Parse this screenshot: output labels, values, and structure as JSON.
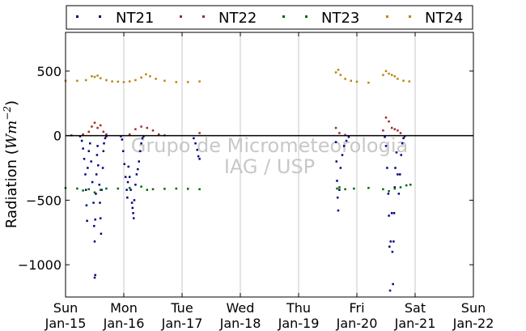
{
  "chart_data": {
    "type": "scatter",
    "title": "",
    "xlabel": "",
    "ylabel": "Radiation (Wm⁻²)",
    "ylabel_parts": {
      "prefix": "Radiation (",
      "unit_base": "Wm",
      "unit_exp": "−2",
      "suffix": ")"
    },
    "watermark": [
      "Grupo de Micrometeorologia",
      "IAG / USP"
    ],
    "ylim": [
      -1250,
      800
    ],
    "yticks": [
      -1000,
      -500,
      0,
      500
    ],
    "ytick_labels": [
      "−1000",
      "−500",
      "0",
      "500"
    ],
    "xlim": [
      0,
      7
    ],
    "xticks": [
      0,
      1,
      2,
      3,
      4,
      5,
      6,
      7
    ],
    "xtick_labels": [
      [
        "Sun",
        "Jan-15"
      ],
      [
        "Mon",
        "Jan-16"
      ],
      [
        "Tue",
        "Jan-17"
      ],
      [
        "Wed",
        "Jan-18"
      ],
      [
        "Thu",
        "Jan-19"
      ],
      [
        "Fri",
        "Jan-20"
      ],
      [
        "Sat",
        "Jan-21"
      ],
      [
        "Sun",
        "Jan-22"
      ]
    ],
    "grid": "vertical",
    "zero_line": true,
    "legend_position": "top",
    "series": [
      {
        "name": "NT21",
        "color": "#000080",
        "points": [
          [
            0.25,
            -5
          ],
          [
            0.28,
            -40
          ],
          [
            0.3,
            -100
          ],
          [
            0.32,
            -180
          ],
          [
            0.34,
            -300
          ],
          [
            0.35,
            -420
          ],
          [
            0.36,
            -540
          ],
          [
            0.37,
            -660
          ],
          [
            0.38,
            -250
          ],
          [
            0.4,
            -120
          ],
          [
            0.42,
            -60
          ],
          [
            0.44,
            -200
          ],
          [
            0.46,
            -360
          ],
          [
            0.48,
            -520
          ],
          [
            0.49,
            -700
          ],
          [
            0.5,
            -820
          ],
          [
            0.51,
            -650
          ],
          [
            0.52,
            -450
          ],
          [
            0.53,
            -300
          ],
          [
            0.54,
            -150
          ],
          [
            0.55,
            -80
          ],
          [
            0.56,
            -230
          ],
          [
            0.58,
            -380
          ],
          [
            0.59,
            -520
          ],
          [
            0.6,
            -640
          ],
          [
            0.61,
            -760
          ],
          [
            0.62,
            -420
          ],
          [
            0.64,
            -250
          ],
          [
            0.65,
            -120
          ],
          [
            0.66,
            -60
          ],
          [
            0.68,
            -20
          ],
          [
            0.7,
            -5
          ],
          [
            0.5,
            -1100
          ],
          [
            0.51,
            -1080
          ],
          [
            0.95,
            -5
          ],
          [
            0.97,
            -30
          ],
          [
            0.99,
            -120
          ],
          [
            1.01,
            -220
          ],
          [
            1.03,
            -320
          ],
          [
            1.05,
            -420
          ],
          [
            1.06,
            -480
          ],
          [
            1.07,
            -360
          ],
          [
            1.08,
            -240
          ],
          [
            1.1,
            -320
          ],
          [
            1.12,
            -420
          ],
          [
            1.14,
            -520
          ],
          [
            1.15,
            -560
          ],
          [
            1.16,
            -600
          ],
          [
            1.17,
            -640
          ],
          [
            1.18,
            -500
          ],
          [
            1.2,
            -380
          ],
          [
            1.22,
            -300
          ],
          [
            1.24,
            -260
          ],
          [
            1.26,
            -200
          ],
          [
            1.28,
            -120
          ],
          [
            1.3,
            -60
          ],
          [
            1.32,
            -20
          ],
          [
            1.34,
            -5
          ],
          [
            2.2,
            -20
          ],
          [
            2.23,
            -60
          ],
          [
            2.26,
            -110
          ],
          [
            2.28,
            -160
          ],
          [
            2.3,
            -180
          ],
          [
            4.64,
            -50
          ],
          [
            4.65,
            -200
          ],
          [
            4.66,
            -350
          ],
          [
            4.67,
            -480
          ],
          [
            4.68,
            -580
          ],
          [
            4.7,
            -420
          ],
          [
            4.72,
            -250
          ],
          [
            4.75,
            -150
          ],
          [
            4.78,
            -80
          ],
          [
            4.82,
            -40
          ],
          [
            4.86,
            -10
          ],
          [
            5.48,
            -10
          ],
          [
            5.5,
            -80
          ],
          [
            5.52,
            -250
          ],
          [
            5.54,
            -450
          ],
          [
            5.55,
            -620
          ],
          [
            5.56,
            -860
          ],
          [
            5.57,
            -1200
          ],
          [
            5.58,
            -820
          ],
          [
            5.6,
            -600
          ],
          [
            5.61,
            -900
          ],
          [
            5.62,
            -1150
          ],
          [
            5.63,
            -820
          ],
          [
            5.64,
            -600
          ],
          [
            5.65,
            -400
          ],
          [
            5.66,
            -250
          ],
          [
            5.68,
            -130
          ],
          [
            5.7,
            -300
          ],
          [
            5.72,
            -450
          ],
          [
            5.74,
            -300
          ],
          [
            5.76,
            -150
          ],
          [
            5.78,
            -60
          ],
          [
            5.8,
            -20
          ],
          [
            5.82,
            -5
          ]
        ]
      },
      {
        "name": "NT22",
        "color": "#a02828",
        "points": [
          [
            0.1,
            2
          ],
          [
            0.3,
            10
          ],
          [
            0.4,
            30
          ],
          [
            0.45,
            70
          ],
          [
            0.5,
            100
          ],
          [
            0.55,
            60
          ],
          [
            0.6,
            80
          ],
          [
            0.65,
            30
          ],
          [
            0.7,
            10
          ],
          [
            1.1,
            10
          ],
          [
            1.2,
            50
          ],
          [
            1.3,
            70
          ],
          [
            1.4,
            60
          ],
          [
            1.5,
            40
          ],
          [
            1.6,
            10
          ],
          [
            1.7,
            2
          ],
          [
            2.3,
            20
          ],
          [
            4.64,
            60
          ],
          [
            4.7,
            20
          ],
          [
            4.8,
            5
          ],
          [
            5.45,
            40
          ],
          [
            5.5,
            140
          ],
          [
            5.55,
            110
          ],
          [
            5.6,
            60
          ],
          [
            5.65,
            50
          ],
          [
            5.7,
            40
          ],
          [
            5.75,
            20
          ]
        ]
      },
      {
        "name": "NT23",
        "color": "#006400",
        "points": [
          [
            0.0,
            -405
          ],
          [
            0.2,
            -410
          ],
          [
            0.3,
            -425
          ],
          [
            0.4,
            -415
          ],
          [
            0.5,
            -440
          ],
          [
            0.6,
            -420
          ],
          [
            0.7,
            -410
          ],
          [
            0.9,
            -410
          ],
          [
            1.1,
            -405
          ],
          [
            1.3,
            -395
          ],
          [
            1.4,
            -420
          ],
          [
            1.5,
            -415
          ],
          [
            1.7,
            -412
          ],
          [
            1.9,
            -410
          ],
          [
            2.1,
            -412
          ],
          [
            2.3,
            -415
          ],
          [
            4.66,
            -410
          ],
          [
            4.7,
            -400
          ],
          [
            4.8,
            -415
          ],
          [
            4.95,
            -410
          ],
          [
            5.2,
            -405
          ],
          [
            5.45,
            -415
          ],
          [
            5.55,
            -430
          ],
          [
            5.65,
            -410
          ],
          [
            5.75,
            -400
          ],
          [
            5.85,
            -385
          ],
          [
            5.92,
            -380
          ]
        ]
      },
      {
        "name": "NT24",
        "color": "#b8860b",
        "points": [
          [
            0.0,
            425
          ],
          [
            0.2,
            425
          ],
          [
            0.35,
            430
          ],
          [
            0.45,
            460
          ],
          [
            0.5,
            455
          ],
          [
            0.55,
            465
          ],
          [
            0.6,
            445
          ],
          [
            0.7,
            430
          ],
          [
            0.8,
            420
          ],
          [
            0.9,
            418
          ],
          [
            1.0,
            415
          ],
          [
            1.1,
            420
          ],
          [
            1.2,
            430
          ],
          [
            1.3,
            450
          ],
          [
            1.38,
            475
          ],
          [
            1.45,
            460
          ],
          [
            1.55,
            440
          ],
          [
            1.7,
            425
          ],
          [
            1.9,
            415
          ],
          [
            2.1,
            415
          ],
          [
            2.3,
            420
          ],
          [
            4.64,
            490
          ],
          [
            4.68,
            510
          ],
          [
            4.72,
            470
          ],
          [
            4.8,
            440
          ],
          [
            4.9,
            425
          ],
          [
            5.0,
            418
          ],
          [
            5.2,
            410
          ],
          [
            5.45,
            470
          ],
          [
            5.5,
            500
          ],
          [
            5.55,
            480
          ],
          [
            5.6,
            470
          ],
          [
            5.65,
            460
          ],
          [
            5.7,
            440
          ],
          [
            5.8,
            425
          ],
          [
            5.9,
            420
          ]
        ]
      }
    ]
  }
}
